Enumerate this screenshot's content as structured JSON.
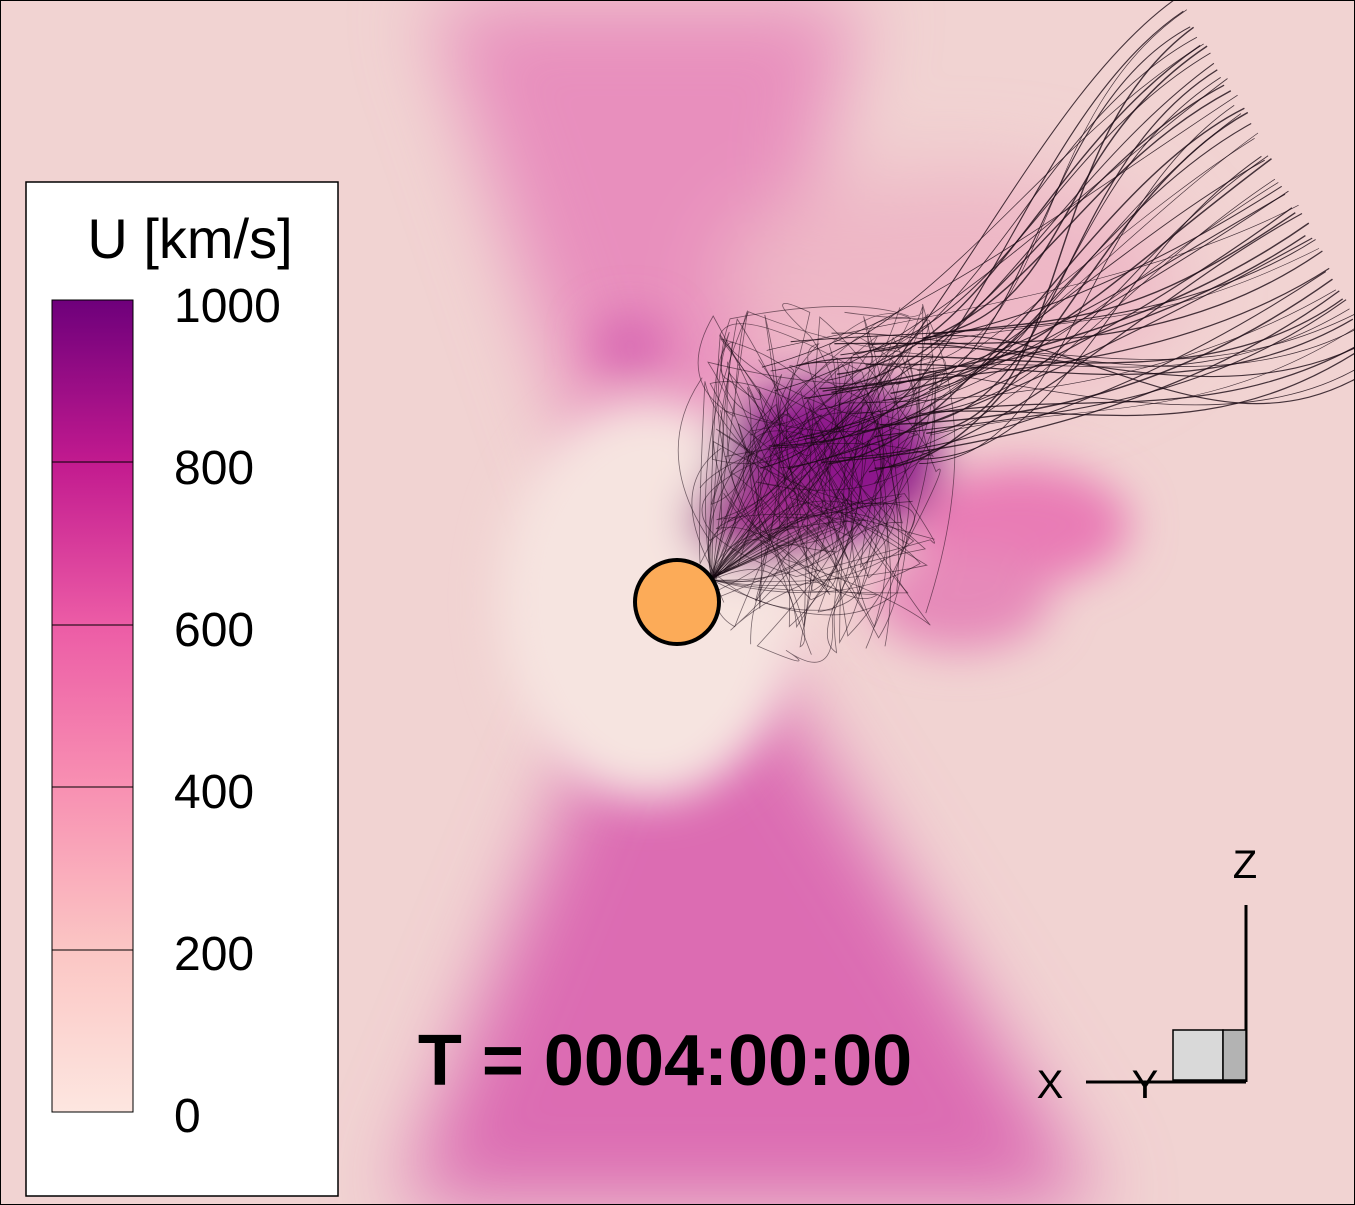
{
  "colors": {
    "background": "#f1d3d2",
    "low": "#fbe7e2",
    "mid": "#ec7fb6",
    "high": "#9c1b8c",
    "max": "#6b0077",
    "sun": "#fcab58",
    "fieldline": "#1a0a14"
  },
  "legend": {
    "title": "U [km/s]",
    "ticks": [
      "1000",
      "800",
      "600",
      "400",
      "200",
      "0"
    ],
    "colors": [
      "#7a007a",
      "#b1138f",
      "#dd3f9b",
      "#f16aa6",
      "#f8a2bb",
      "#fcd7d3"
    ]
  },
  "time": {
    "label": "T = 0004:00:00"
  },
  "axes": {
    "x": "X",
    "y": "Y",
    "z": "Z"
  }
}
